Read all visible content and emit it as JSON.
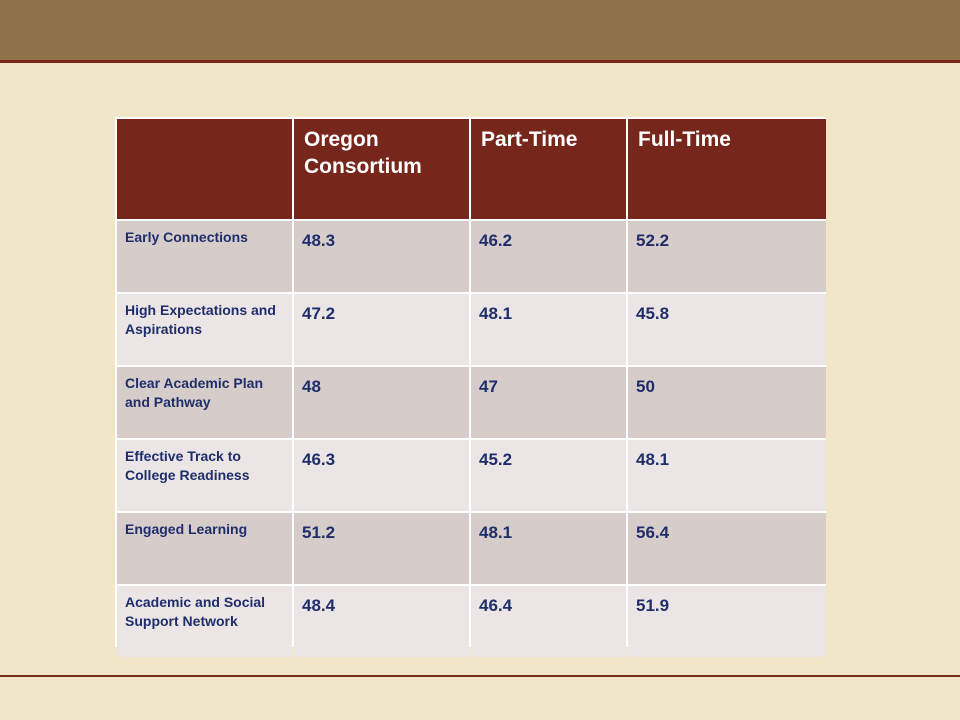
{
  "table": {
    "headers": [
      "",
      "Oregon Consortium",
      "Part-Time",
      "Full-Time"
    ],
    "rows": [
      {
        "label": "Early Connections",
        "values": [
          "48.3",
          "46.2",
          "52.2"
        ]
      },
      {
        "label": "High Expectations and Aspirations",
        "values": [
          "47.2",
          "48.1",
          "45.8"
        ]
      },
      {
        "label": "Clear Academic Plan and Pathway",
        "values": [
          "48",
          "47",
          "50"
        ]
      },
      {
        "label": "Effective Track to College Readiness",
        "values": [
          "46.3",
          "45.2",
          "48.1"
        ]
      },
      {
        "label": "Engaged Learning",
        "values": [
          "51.2",
          "48.1",
          "56.4"
        ]
      },
      {
        "label": "Academic and Social Support Network",
        "values": [
          "48.4",
          "46.4",
          "51.9"
        ]
      }
    ]
  },
  "colors": {
    "header_bg": "#76261a",
    "row_dark": "#d6cdcb",
    "row_light": "#ebe6e5",
    "text": "#1f2d6b",
    "top_band": "#8f7247",
    "background": "#f1e6c8"
  }
}
